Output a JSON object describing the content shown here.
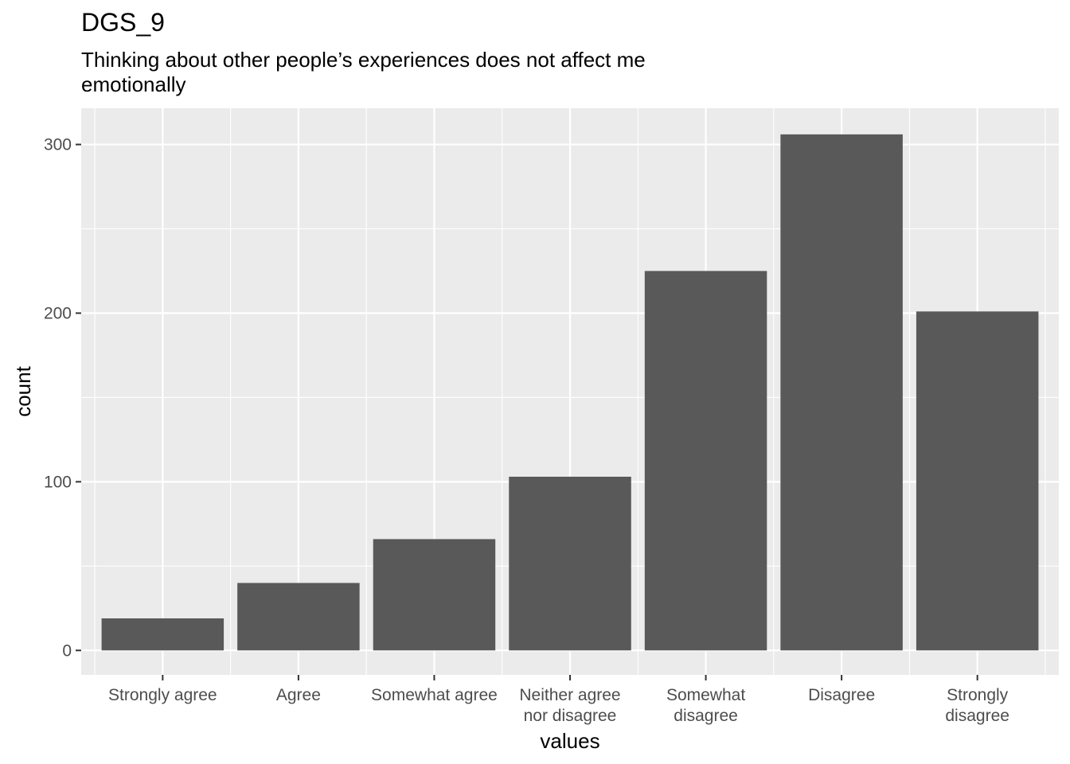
{
  "chart_data": {
    "type": "bar",
    "title": "DGS_9",
    "subtitle_lines": [
      "Thinking about other people’s experiences does not affect me",
      "emotionally"
    ],
    "xlabel": "values",
    "ylabel": "count",
    "categories": [
      [
        "Strongly agree"
      ],
      [
        "Agree"
      ],
      [
        "Somewhat agree"
      ],
      [
        "Neither agree",
        "nor disagree"
      ],
      [
        "Somewhat",
        "disagree"
      ],
      [
        "Disagree"
      ],
      [
        "Strongly",
        "disagree"
      ]
    ],
    "values": [
      19,
      40,
      66,
      103,
      225,
      306,
      201
    ],
    "ylim": [
      -14.5,
      321.5
    ],
    "yticks": [
      0,
      100,
      200,
      300
    ],
    "grid": true,
    "bar_color": "#595959",
    "panel_color": "#ebebeb",
    "grid_color": "#ffffff"
  }
}
